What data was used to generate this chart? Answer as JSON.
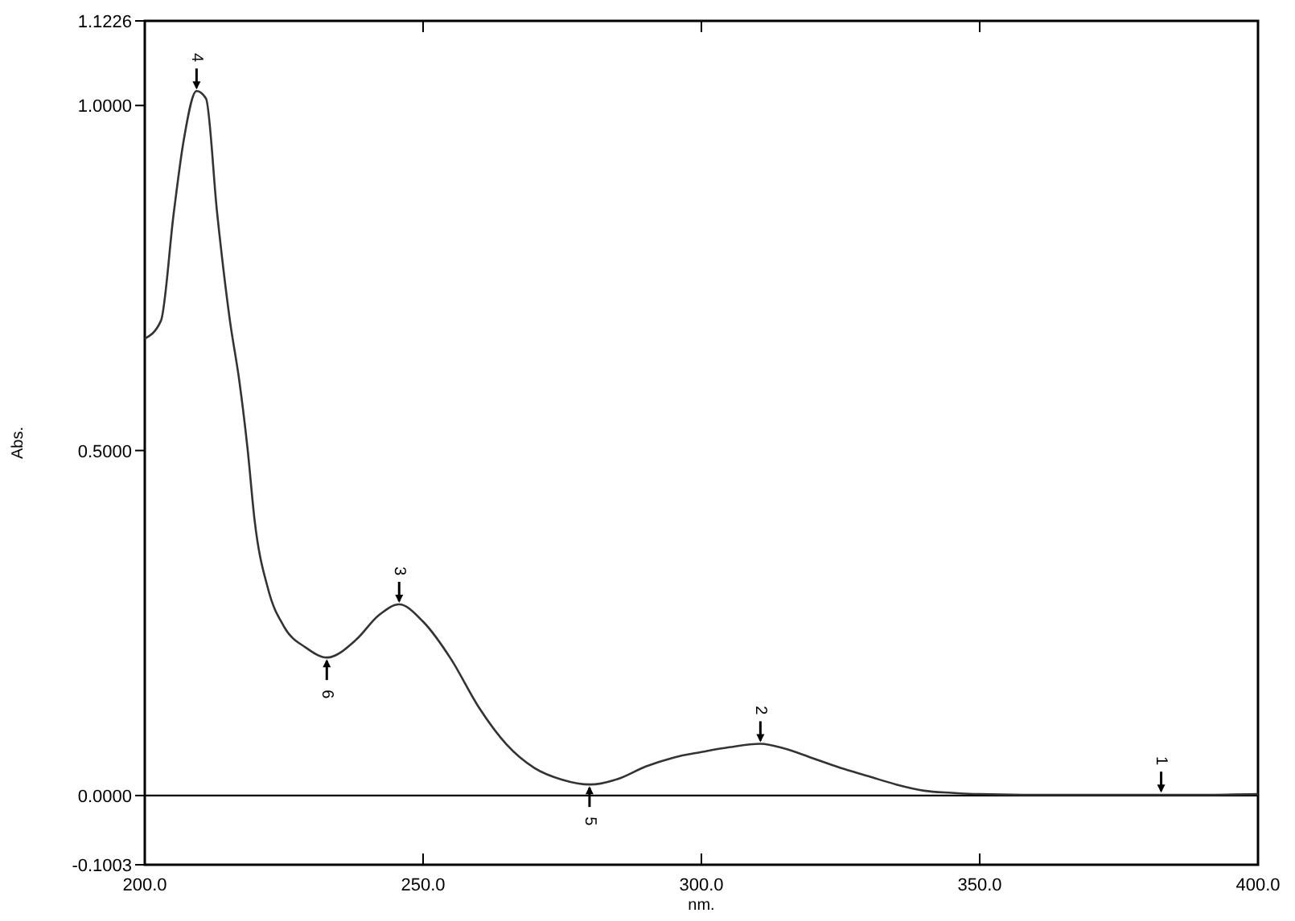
{
  "chart_data": {
    "type": "line",
    "xlabel": "nm.",
    "ylabel": "Abs.",
    "xlim": [
      200,
      400
    ],
    "ylim": [
      -0.1003,
      1.1226
    ],
    "xticks": [
      {
        "value": 200,
        "label": "200.0"
      },
      {
        "value": 250,
        "label": "250.0"
      },
      {
        "value": 300,
        "label": "300.0"
      },
      {
        "value": 350,
        "label": "350.0"
      },
      {
        "value": 400,
        "label": "400.0"
      }
    ],
    "yticks": [
      {
        "value": -0.1003,
        "label": "-0.1003"
      },
      {
        "value": 0,
        "label": "0.0000"
      },
      {
        "value": 0.5,
        "label": "0.5000"
      },
      {
        "value": 1,
        "label": "1.0000"
      },
      1.1226
    ],
    "series": [
      {
        "color": "#333333",
        "x": [
          200,
          202.9,
          205.2,
          207,
          209.3,
          211,
          213,
          215.3,
          217,
          218.5,
          219.7,
          222.2,
          225,
          229,
          232.7,
          238,
          242,
          245.7,
          250,
          255,
          260,
          265,
          270,
          275,
          280,
          285,
          290,
          295,
          300,
          305,
          310.6,
          315,
          320,
          325,
          330,
          335,
          340,
          345,
          350,
          360,
          370,
          380,
          390,
          400
        ],
        "values": [
          0.662,
          0.688,
          0.844,
          0.95,
          1.021,
          1.01,
          0.844,
          0.688,
          0.6,
          0.5,
          0.401,
          0.298,
          0.245,
          0.214,
          0.2,
          0.226,
          0.261,
          0.277,
          0.252,
          0.198,
          0.128,
          0.074,
          0.04,
          0.023,
          0.016,
          0.024,
          0.042,
          0.055,
          0.063,
          0.07,
          0.075,
          0.068,
          0.054,
          0.04,
          0.028,
          0.016,
          0.007,
          0.004,
          0.002,
          0.001,
          0.001,
          0.001,
          0.001,
          0.002
        ]
      }
    ],
    "ref_lines": [
      {
        "axis": "y",
        "value": 0
      }
    ],
    "annotations": [
      {
        "text": "1",
        "x": 382.6,
        "y": 0.002
      },
      {
        "text": "2",
        "x": 310.6,
        "y": 0.075
      },
      {
        "text": "3",
        "x": 245.7,
        "y": 0.277
      },
      {
        "text": "4",
        "x": 209.3,
        "y": 1.021
      },
      {
        "text": "5",
        "x": 279.9,
        "y": 0.016
      },
      {
        "text": "6",
        "x": 232.7,
        "y": 0.2
      }
    ],
    "grid": false
  }
}
